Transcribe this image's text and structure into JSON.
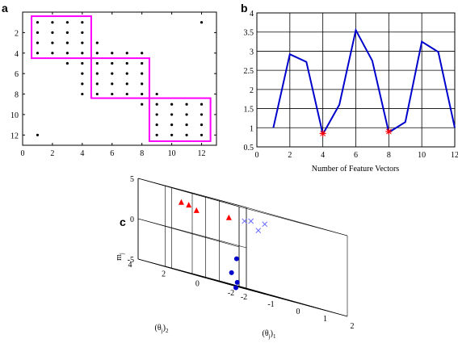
{
  "panels": {
    "a": {
      "letter": "a"
    },
    "b": {
      "letter": "b"
    },
    "c": {
      "letter": "c"
    }
  },
  "colors": {
    "magenta": "#ff00ff",
    "blue": "#0000cc",
    "red": "#ff0000",
    "lightblue": "#6a6aff",
    "black": "#000000"
  },
  "chart_data": [
    {
      "panel": "a",
      "type": "scatter",
      "title": "",
      "xlabel": "",
      "ylabel": "",
      "xlim": [
        0,
        13
      ],
      "ylim": [
        13,
        0
      ],
      "x_ticks": [
        0,
        2,
        4,
        6,
        8,
        10,
        12
      ],
      "y_ticks": [
        2,
        4,
        6,
        8,
        10,
        12
      ],
      "points": [
        [
          1,
          1
        ],
        [
          2,
          1
        ],
        [
          3,
          1
        ],
        [
          4,
          1
        ],
        [
          12,
          1
        ],
        [
          1,
          2
        ],
        [
          2,
          2
        ],
        [
          3,
          2
        ],
        [
          4,
          2
        ],
        [
          1,
          3
        ],
        [
          2,
          3
        ],
        [
          3,
          3
        ],
        [
          4,
          3
        ],
        [
          5,
          3
        ],
        [
          1,
          4
        ],
        [
          2,
          4
        ],
        [
          3,
          4
        ],
        [
          4,
          4
        ],
        [
          5,
          4
        ],
        [
          6,
          4
        ],
        [
          7,
          4
        ],
        [
          8,
          4
        ],
        [
          3,
          5
        ],
        [
          4,
          5
        ],
        [
          5,
          5
        ],
        [
          6,
          5
        ],
        [
          7,
          5
        ],
        [
          8,
          5
        ],
        [
          4,
          6
        ],
        [
          5,
          6
        ],
        [
          6,
          6
        ],
        [
          7,
          6
        ],
        [
          8,
          6
        ],
        [
          4,
          7
        ],
        [
          5,
          7
        ],
        [
          6,
          7
        ],
        [
          7,
          7
        ],
        [
          8,
          7
        ],
        [
          4,
          8
        ],
        [
          5,
          8
        ],
        [
          6,
          8
        ],
        [
          7,
          8
        ],
        [
          8,
          8
        ],
        [
          9,
          8
        ],
        [
          8,
          9
        ],
        [
          9,
          9
        ],
        [
          10,
          9
        ],
        [
          11,
          9
        ],
        [
          12,
          9
        ],
        [
          9,
          10
        ],
        [
          10,
          10
        ],
        [
          11,
          10
        ],
        [
          12,
          10
        ],
        [
          9,
          11
        ],
        [
          10,
          11
        ],
        [
          11,
          11
        ],
        [
          12,
          11
        ],
        [
          1,
          12
        ],
        [
          9,
          12
        ],
        [
          10,
          12
        ],
        [
          11,
          12
        ],
        [
          12,
          12
        ]
      ],
      "boxes": [
        {
          "x0": 0.6,
          "x1": 4.6,
          "y0": 0.4,
          "y1": 4.5
        },
        {
          "x0": 4.6,
          "x1": 8.5,
          "y0": 4.5,
          "y1": 8.4
        },
        {
          "x0": 8.5,
          "x1": 12.6,
          "y0": 8.4,
          "y1": 12.6
        }
      ]
    },
    {
      "panel": "b",
      "type": "line",
      "title": "",
      "xlabel": "Number of Feature Vectors",
      "ylabel": "",
      "xlim": [
        0,
        12
      ],
      "ylim": [
        0.5,
        4
      ],
      "x_ticks": [
        0,
        2,
        4,
        6,
        8,
        10,
        12
      ],
      "y_ticks": [
        0.5,
        1,
        1.5,
        2,
        2.5,
        3,
        3.5,
        4
      ],
      "grid": true,
      "x": [
        1,
        2,
        3,
        4,
        5,
        6,
        7,
        8,
        9,
        10,
        11,
        12
      ],
      "values": [
        1.0,
        2.92,
        2.72,
        0.83,
        1.6,
        3.55,
        2.75,
        0.88,
        1.15,
        3.25,
        2.98,
        1.0
      ],
      "markers": [
        {
          "x": 4,
          "y": 0.85
        },
        {
          "x": 8,
          "y": 0.9
        }
      ]
    },
    {
      "panel": "c",
      "type": "scatter",
      "title": "",
      "xlabel": "(θj)1",
      "ylabel": "(θj)2",
      "zlabel": "mj",
      "xlim": [
        -2,
        2
      ],
      "ylim": [
        -2,
        4
      ],
      "zlim": [
        -5,
        5
      ],
      "x_ticks": [
        -2,
        -1,
        0,
        1,
        2
      ],
      "y_ticks": [
        -2,
        0,
        2,
        4
      ],
      "z_ticks": [
        -5,
        0,
        5
      ],
      "grid": true,
      "series": [
        {
          "marker": "triangle",
          "color": "red",
          "points": [
            [
              -0.9,
              2.3,
              3.0
            ],
            [
              -1.0,
              2.6,
              3.4
            ],
            [
              -1.4,
              2.4,
              3.5
            ],
            [
              -0.2,
              1.5,
              3.2
            ]
          ]
        },
        {
          "marker": "circle",
          "color": "blue",
          "points": [
            [
              -0.6,
              0.4,
              -1.6
            ],
            [
              -0.6,
              0.7,
              -3.5
            ],
            [
              -0.7,
              0.2,
              -4.5
            ],
            [
              -1.0,
              -0.2,
              -5.2
            ]
          ]
        },
        {
          "marker": "x",
          "color": "lightblue",
          "points": [
            [
              0.5,
              1.7,
              3.3
            ],
            [
              0.8,
              1.8,
              3.5
            ],
            [
              1.0,
              1.3,
              3.6
            ],
            [
              0.7,
              1.2,
              2.6
            ]
          ]
        }
      ]
    }
  ],
  "labels": {
    "c_x_main": "(θ",
    "c_x_sub": "j",
    "c_x_close": ")",
    "c_x_idx": "1",
    "c_y_main": "(θ",
    "c_y_sub": "j",
    "c_y_close": ")",
    "c_y_idx": "2",
    "c_z_main": "m",
    "c_z_sub": "j"
  }
}
